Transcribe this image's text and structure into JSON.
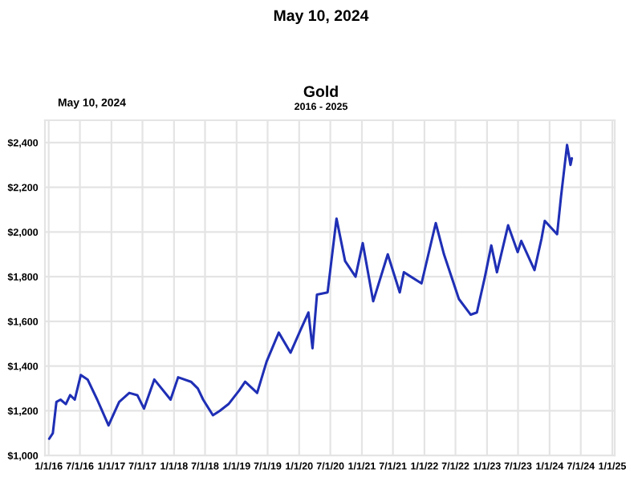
{
  "chart_data": {
    "type": "line",
    "title": "Gold",
    "subtitle": "2016 - 2025",
    "annotations": [
      "May 10, 2024",
      "May 10, 2024"
    ],
    "x": [
      "2016-01-04",
      "2016-01-25",
      "2016-02-15",
      "2016-03-10",
      "2016-04-10",
      "2016-05-05",
      "2016-06-01",
      "2016-07-06",
      "2016-08-15",
      "2016-10-10",
      "2016-12-15",
      "2017-02-15",
      "2017-04-15",
      "2017-06-01",
      "2017-07-10",
      "2017-09-08",
      "2017-12-12",
      "2018-01-25",
      "2018-04-10",
      "2018-05-20",
      "2018-06-20",
      "2018-08-16",
      "2018-09-25",
      "2018-11-15",
      "2019-01-15",
      "2019-02-20",
      "2019-05-01",
      "2019-06-25",
      "2019-09-04",
      "2019-11-12",
      "2020-01-08",
      "2020-02-24",
      "2020-03-19",
      "2020-04-14",
      "2020-06-15",
      "2020-08-06",
      "2020-09-25",
      "2020-11-25",
      "2021-01-06",
      "2021-03-08",
      "2021-06-01",
      "2021-08-10",
      "2021-09-03",
      "2021-12-15",
      "2022-03-08",
      "2022-04-25",
      "2022-07-21",
      "2022-09-28",
      "2022-11-03",
      "2022-12-20",
      "2023-01-26",
      "2023-02-28",
      "2023-05-04",
      "2023-06-29",
      "2023-07-20",
      "2023-10-05",
      "2023-11-15",
      "2023-12-04",
      "2024-02-14",
      "2024-03-08",
      "2024-04-12",
      "2024-05-02",
      "2024-05-10"
    ],
    "series": [
      {
        "color": "#1f2fb5",
        "values": [
          1075,
          1100,
          1240,
          1250,
          1230,
          1270,
          1250,
          1360,
          1340,
          1250,
          1135,
          1240,
          1280,
          1270,
          1210,
          1340,
          1250,
          1350,
          1330,
          1300,
          1250,
          1180,
          1200,
          1230,
          1290,
          1330,
          1280,
          1420,
          1550,
          1460,
          1560,
          1640,
          1480,
          1720,
          1730,
          2060,
          1870,
          1800,
          1950,
          1690,
          1900,
          1730,
          1820,
          1770,
          2040,
          1900,
          1700,
          1630,
          1640,
          1800,
          1940,
          1820,
          2030,
          1910,
          1960,
          1830,
          1970,
          2050,
          1990,
          2160,
          2390,
          2300,
          2330
        ]
      }
    ],
    "xlim": [
      "2015-12-10",
      "2025-01-15"
    ],
    "xticks": [
      {
        "value": "2016-01-01",
        "label": "1/1/16"
      },
      {
        "value": "2016-07-01",
        "label": "7/1/16"
      },
      {
        "value": "2017-01-01",
        "label": "1/1/17"
      },
      {
        "value": "2017-07-01",
        "label": "7/1/17"
      },
      {
        "value": "2018-01-01",
        "label": "1/1/18"
      },
      {
        "value": "2018-07-01",
        "label": "7/1/18"
      },
      {
        "value": "2019-01-01",
        "label": "1/1/19"
      },
      {
        "value": "2019-07-01",
        "label": "7/1/19"
      },
      {
        "value": "2020-01-01",
        "label": "1/1/20"
      },
      {
        "value": "2020-07-01",
        "label": "7/1/20"
      },
      {
        "value": "2021-01-01",
        "label": "1/1/21"
      },
      {
        "value": "2021-07-01",
        "label": "7/1/21"
      },
      {
        "value": "2022-01-01",
        "label": "1/1/22"
      },
      {
        "value": "2022-07-01",
        "label": "7/1/22"
      },
      {
        "value": "2023-01-01",
        "label": "1/1/23"
      },
      {
        "value": "2023-07-01",
        "label": "7/1/23"
      },
      {
        "value": "2024-01-01",
        "label": "1/1/24"
      },
      {
        "value": "2024-07-01",
        "label": "7/1/24"
      },
      {
        "value": "2025-01-01",
        "label": "1/1/25"
      }
    ],
    "ylim": [
      1000,
      2500
    ],
    "yticks": [
      {
        "value": 1000,
        "label": "$1,000"
      },
      {
        "value": 1200,
        "label": "$1,200"
      },
      {
        "value": 1400,
        "label": "$1,400"
      },
      {
        "value": 1600,
        "label": "$1,600"
      },
      {
        "value": 1800,
        "label": "$1,800"
      },
      {
        "value": 2000,
        "label": "$2,000"
      },
      {
        "value": 2200,
        "label": "$2,200"
      },
      {
        "value": 2400,
        "label": "$2,400"
      }
    ],
    "grid": true
  }
}
